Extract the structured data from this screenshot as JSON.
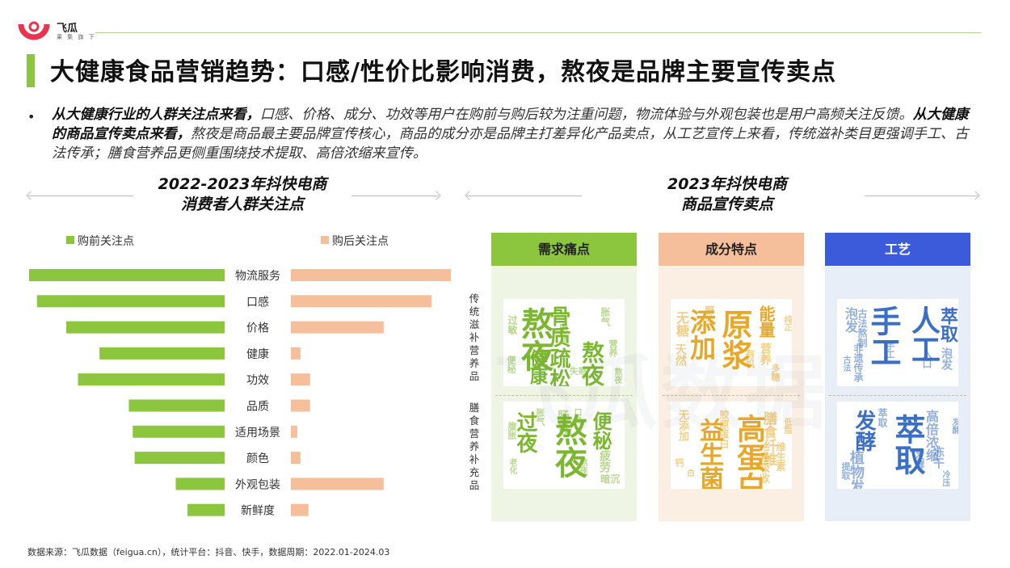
{
  "brand": {
    "name": "飞瓜",
    "tagline": "果 集 旗 下"
  },
  "title": "大健康食品营销趋势：口感/性价比影响消费，熬夜是品牌主要宣传卖点",
  "summary": {
    "p1_bold": "从大健康行业的人群关注点来看，",
    "p1_text": "口感、价格、成分、功效等用户在购前与购后较为注重问题，物流体验与外观包装也是用户高频关注反馈。",
    "p2_bold": "从大健康的商品宣传卖点来看，",
    "p2_text": "熬夜是商品最主要品牌宣传核心，商品的成分亦是品牌主打差异化产品卖点，从工艺宣传上来看，传统滋补类目更强调手工、古法传承；膳食营养品更侧重围绕技术提取、高倍浓缩来宣传。"
  },
  "left_section": {
    "title_line1": "2022-2023年抖快电商",
    "title_line2": "消费者人群关注点"
  },
  "right_section": {
    "title_line1": "2023年抖快电商",
    "title_line2": "商品宣传卖点"
  },
  "chart_data": {
    "type": "bar",
    "orientation": "horizontal-diverging",
    "categories": [
      "物流服务",
      "口感",
      "价格",
      "健康",
      "功效",
      "品质",
      "适用场景",
      "颜色",
      "外观包装",
      "新鲜度"
    ],
    "series": [
      {
        "name": "购前关注点",
        "color": "#8cc63f",
        "values": [
          100,
          96,
          81,
          64,
          75,
          49,
          47,
          46,
          25,
          19
        ]
      },
      {
        "name": "购后关注点",
        "color": "#f6bf9b",
        "values": [
          100,
          88,
          58,
          6,
          12,
          12,
          4,
          6,
          58,
          11
        ]
      }
    ],
    "xlim": [
      0,
      100
    ]
  },
  "columns": [
    {
      "label": "需求痛点",
      "head_color": "#8cc63f",
      "body_color": "#eef5e4"
    },
    {
      "label": "成分特点",
      "head_color": "#f6bf9b",
      "body_color": "#fbefe4"
    },
    {
      "label": "工艺",
      "head_color": "#3b5bdb",
      "body_color": "#e8eef8"
    }
  ],
  "row_labels": [
    "传统滋补营养品",
    "膳食营养补充品"
  ],
  "word_clouds": [
    {
      "color": "#7cb82f",
      "words": [
        "熬夜",
        "骨质疏松",
        "健康",
        "过敏",
        "胀气",
        "熬夜肌",
        "出油",
        "营养",
        "失眠",
        "便秘",
        "熬夜"
      ]
    },
    {
      "color": "#e7a82a",
      "words": [
        "原浆",
        "添加",
        "能量",
        "无糖",
        "天然",
        "野生",
        "营养",
        "有机",
        "多糖",
        "纯正"
      ]
    },
    {
      "color": "#3b6fc4",
      "words": [
        "人工",
        "手工",
        "萃取",
        "泡发",
        "古法熬制",
        "非遗传承",
        "入口",
        "泡发",
        "手工",
        "古法"
      ]
    },
    {
      "color": "#7cb82f",
      "words": [
        "熬夜",
        "过夜",
        "便秘",
        "肠胃",
        "疲劳",
        "暗沉",
        "腹胀",
        "胀气",
        "口臭",
        "老化",
        "熬夜"
      ]
    },
    {
      "color": "#e7a82a",
      "words": [
        "高蛋白",
        "益生菌",
        "膳食纤维",
        "无添加",
        "易吸收",
        "胶原蛋白",
        "维生素",
        "钙",
        "低脂",
        "白"
      ]
    },
    {
      "color": "#3b6fc4",
      "words": [
        "萃取",
        "发酵",
        "植物发酵",
        "高倍浓缩",
        "冻干",
        "萃取",
        "发酵",
        "提取",
        "冷压",
        "发酵"
      ]
    }
  ],
  "watermark": "飞瓜数据",
  "source": "数据来源：飞瓜数据（feigua.cn），统计平台：抖音、快手，数据周期：2022.01-2024.03"
}
